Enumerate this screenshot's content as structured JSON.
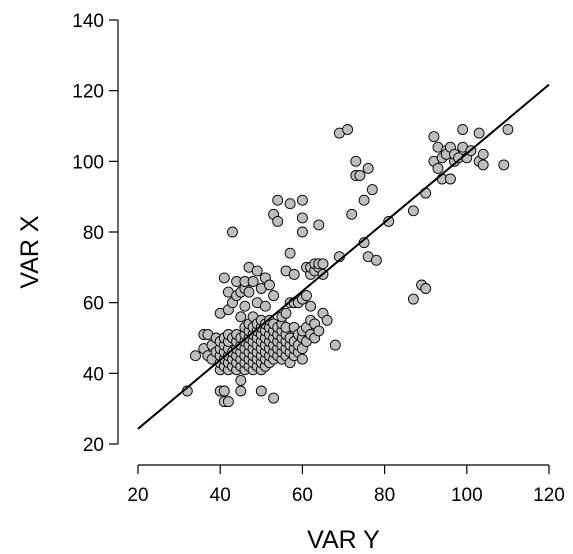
{
  "chart_data": {
    "type": "scatter",
    "xlabel": "VAR Y",
    "ylabel": "VAR X",
    "xlim": [
      20,
      120
    ],
    "ylim": [
      20,
      140
    ],
    "xticks": [
      20,
      40,
      60,
      80,
      100,
      120
    ],
    "yticks": [
      20,
      40,
      60,
      80,
      100,
      120,
      140
    ],
    "grid": false,
    "legend": "none",
    "colors": {
      "point_fill": "#bebebe",
      "point_stroke": "#000000",
      "line": "#000000"
    },
    "fit_line": {
      "x": [
        20,
        120
      ],
      "y": [
        24.3,
        121.7
      ]
    },
    "points": [
      [
        32,
        35
      ],
      [
        34,
        45
      ],
      [
        36,
        47
      ],
      [
        36,
        51
      ],
      [
        37,
        51
      ],
      [
        37,
        45
      ],
      [
        38,
        44
      ],
      [
        38,
        48
      ],
      [
        39,
        50
      ],
      [
        39,
        46
      ],
      [
        40,
        41
      ],
      [
        40,
        43
      ],
      [
        40,
        45
      ],
      [
        40,
        47
      ],
      [
        40,
        49
      ],
      [
        40,
        35
      ],
      [
        40,
        57
      ],
      [
        41,
        42
      ],
      [
        41,
        44
      ],
      [
        41,
        46
      ],
      [
        41,
        48
      ],
      [
        41,
        50
      ],
      [
        41,
        35
      ],
      [
        41,
        32
      ],
      [
        41,
        67
      ],
      [
        42,
        41
      ],
      [
        42,
        43
      ],
      [
        42,
        45
      ],
      [
        42,
        47
      ],
      [
        42,
        49
      ],
      [
        42,
        51
      ],
      [
        42,
        32
      ],
      [
        42,
        58
      ],
      [
        42,
        63
      ],
      [
        43,
        42
      ],
      [
        43,
        44
      ],
      [
        43,
        46
      ],
      [
        43,
        50
      ],
      [
        43,
        80
      ],
      [
        43,
        60
      ],
      [
        44,
        41
      ],
      [
        44,
        43
      ],
      [
        44,
        45
      ],
      [
        44,
        47
      ],
      [
        44,
        49
      ],
      [
        44,
        51
      ],
      [
        44,
        62
      ],
      [
        44,
        66
      ],
      [
        45,
        42
      ],
      [
        45,
        44
      ],
      [
        45,
        46
      ],
      [
        45,
        48
      ],
      [
        45,
        50
      ],
      [
        45,
        38
      ],
      [
        45,
        35
      ],
      [
        45,
        56
      ],
      [
        45,
        63
      ],
      [
        46,
        41
      ],
      [
        46,
        43
      ],
      [
        46,
        45
      ],
      [
        46,
        47
      ],
      [
        46,
        49
      ],
      [
        46,
        51
      ],
      [
        46,
        53
      ],
      [
        46,
        59
      ],
      [
        46,
        64
      ],
      [
        46,
        66
      ],
      [
        47,
        42
      ],
      [
        47,
        44
      ],
      [
        47,
        46
      ],
      [
        47,
        48
      ],
      [
        47,
        50
      ],
      [
        47,
        52
      ],
      [
        47,
        54
      ],
      [
        47,
        70
      ],
      [
        47,
        63
      ],
      [
        48,
        41
      ],
      [
        48,
        43
      ],
      [
        48,
        45
      ],
      [
        48,
        47
      ],
      [
        48,
        49
      ],
      [
        48,
        51
      ],
      [
        48,
        53
      ],
      [
        48,
        56
      ],
      [
        48,
        66
      ],
      [
        49,
        42
      ],
      [
        49,
        44
      ],
      [
        49,
        46
      ],
      [
        49,
        48
      ],
      [
        49,
        50
      ],
      [
        49,
        52
      ],
      [
        49,
        54
      ],
      [
        49,
        69
      ],
      [
        49,
        60
      ],
      [
        50,
        41
      ],
      [
        50,
        43
      ],
      [
        50,
        45
      ],
      [
        50,
        47
      ],
      [
        50,
        49
      ],
      [
        50,
        51
      ],
      [
        50,
        53
      ],
      [
        50,
        55
      ],
      [
        50,
        35
      ],
      [
        50,
        64
      ],
      [
        51,
        42
      ],
      [
        51,
        44
      ],
      [
        51,
        46
      ],
      [
        51,
        48
      ],
      [
        51,
        50
      ],
      [
        51,
        52
      ],
      [
        51,
        54
      ],
      [
        51,
        59
      ],
      [
        51,
        67
      ],
      [
        52,
        43
      ],
      [
        52,
        45
      ],
      [
        52,
        47
      ],
      [
        52,
        49
      ],
      [
        52,
        51
      ],
      [
        52,
        53
      ],
      [
        52,
        55
      ],
      [
        52,
        65
      ],
      [
        53,
        44
      ],
      [
        53,
        46
      ],
      [
        53,
        48
      ],
      [
        53,
        50
      ],
      [
        53,
        52
      ],
      [
        53,
        54
      ],
      [
        53,
        33
      ],
      [
        53,
        85
      ],
      [
        53,
        62
      ],
      [
        54,
        45
      ],
      [
        54,
        47
      ],
      [
        54,
        49
      ],
      [
        54,
        51
      ],
      [
        54,
        53
      ],
      [
        54,
        89
      ],
      [
        54,
        83
      ],
      [
        55,
        44
      ],
      [
        55,
        46
      ],
      [
        55,
        48
      ],
      [
        55,
        50
      ],
      [
        55,
        52
      ],
      [
        55,
        54
      ],
      [
        55,
        56
      ],
      [
        56,
        45
      ],
      [
        56,
        47
      ],
      [
        56,
        49
      ],
      [
        56,
        51
      ],
      [
        56,
        53
      ],
      [
        56,
        69
      ],
      [
        56,
        57
      ],
      [
        57,
        43
      ],
      [
        57,
        46
      ],
      [
        57,
        48
      ],
      [
        57,
        50
      ],
      [
        57,
        60
      ],
      [
        57,
        88
      ],
      [
        57,
        74
      ],
      [
        58,
        45
      ],
      [
        58,
        47
      ],
      [
        58,
        49
      ],
      [
        58,
        53
      ],
      [
        58,
        60
      ],
      [
        58,
        68
      ],
      [
        59,
        46
      ],
      [
        59,
        48
      ],
      [
        59,
        51
      ],
      [
        59,
        60
      ],
      [
        60,
        44
      ],
      [
        60,
        47
      ],
      [
        60,
        50
      ],
      [
        60,
        52
      ],
      [
        60,
        61
      ],
      [
        60,
        89
      ],
      [
        60,
        84
      ],
      [
        60,
        80
      ],
      [
        61,
        49
      ],
      [
        61,
        53
      ],
      [
        61,
        62
      ],
      [
        61,
        70
      ],
      [
        62,
        51
      ],
      [
        62,
        55
      ],
      [
        62,
        59
      ],
      [
        62,
        68
      ],
      [
        62,
        70
      ],
      [
        63,
        50
      ],
      [
        63,
        54
      ],
      [
        63,
        69
      ],
      [
        63,
        71
      ],
      [
        64,
        52
      ],
      [
        64,
        70
      ],
      [
        64,
        82
      ],
      [
        64,
        71
      ],
      [
        65,
        57
      ],
      [
        65,
        71
      ],
      [
        65,
        68
      ],
      [
        66,
        55
      ],
      [
        68,
        48
      ],
      [
        69,
        73
      ],
      [
        69,
        108
      ],
      [
        71,
        109
      ],
      [
        72,
        85
      ],
      [
        73,
        100
      ],
      [
        73,
        96
      ],
      [
        74,
        96
      ],
      [
        75,
        77
      ],
      [
        75,
        89
      ],
      [
        76,
        98
      ],
      [
        76,
        73
      ],
      [
        77,
        92
      ],
      [
        78,
        72
      ],
      [
        81,
        83
      ],
      [
        87,
        61
      ],
      [
        87,
        86
      ],
      [
        89,
        65
      ],
      [
        90,
        64
      ],
      [
        90,
        91
      ],
      [
        92,
        107
      ],
      [
        92,
        100
      ],
      [
        93,
        104
      ],
      [
        93,
        98
      ],
      [
        94,
        101
      ],
      [
        94,
        95
      ],
      [
        95,
        103
      ],
      [
        95,
        102
      ],
      [
        96,
        95
      ],
      [
        96,
        104
      ],
      [
        97,
        100
      ],
      [
        97,
        102
      ],
      [
        98,
        101
      ],
      [
        99,
        109
      ],
      [
        99,
        104
      ],
      [
        100,
        101
      ],
      [
        101,
        103
      ],
      [
        103,
        108
      ],
      [
        103,
        100
      ],
      [
        104,
        99
      ],
      [
        104,
        102
      ],
      [
        109,
        99
      ],
      [
        110,
        109
      ]
    ]
  }
}
